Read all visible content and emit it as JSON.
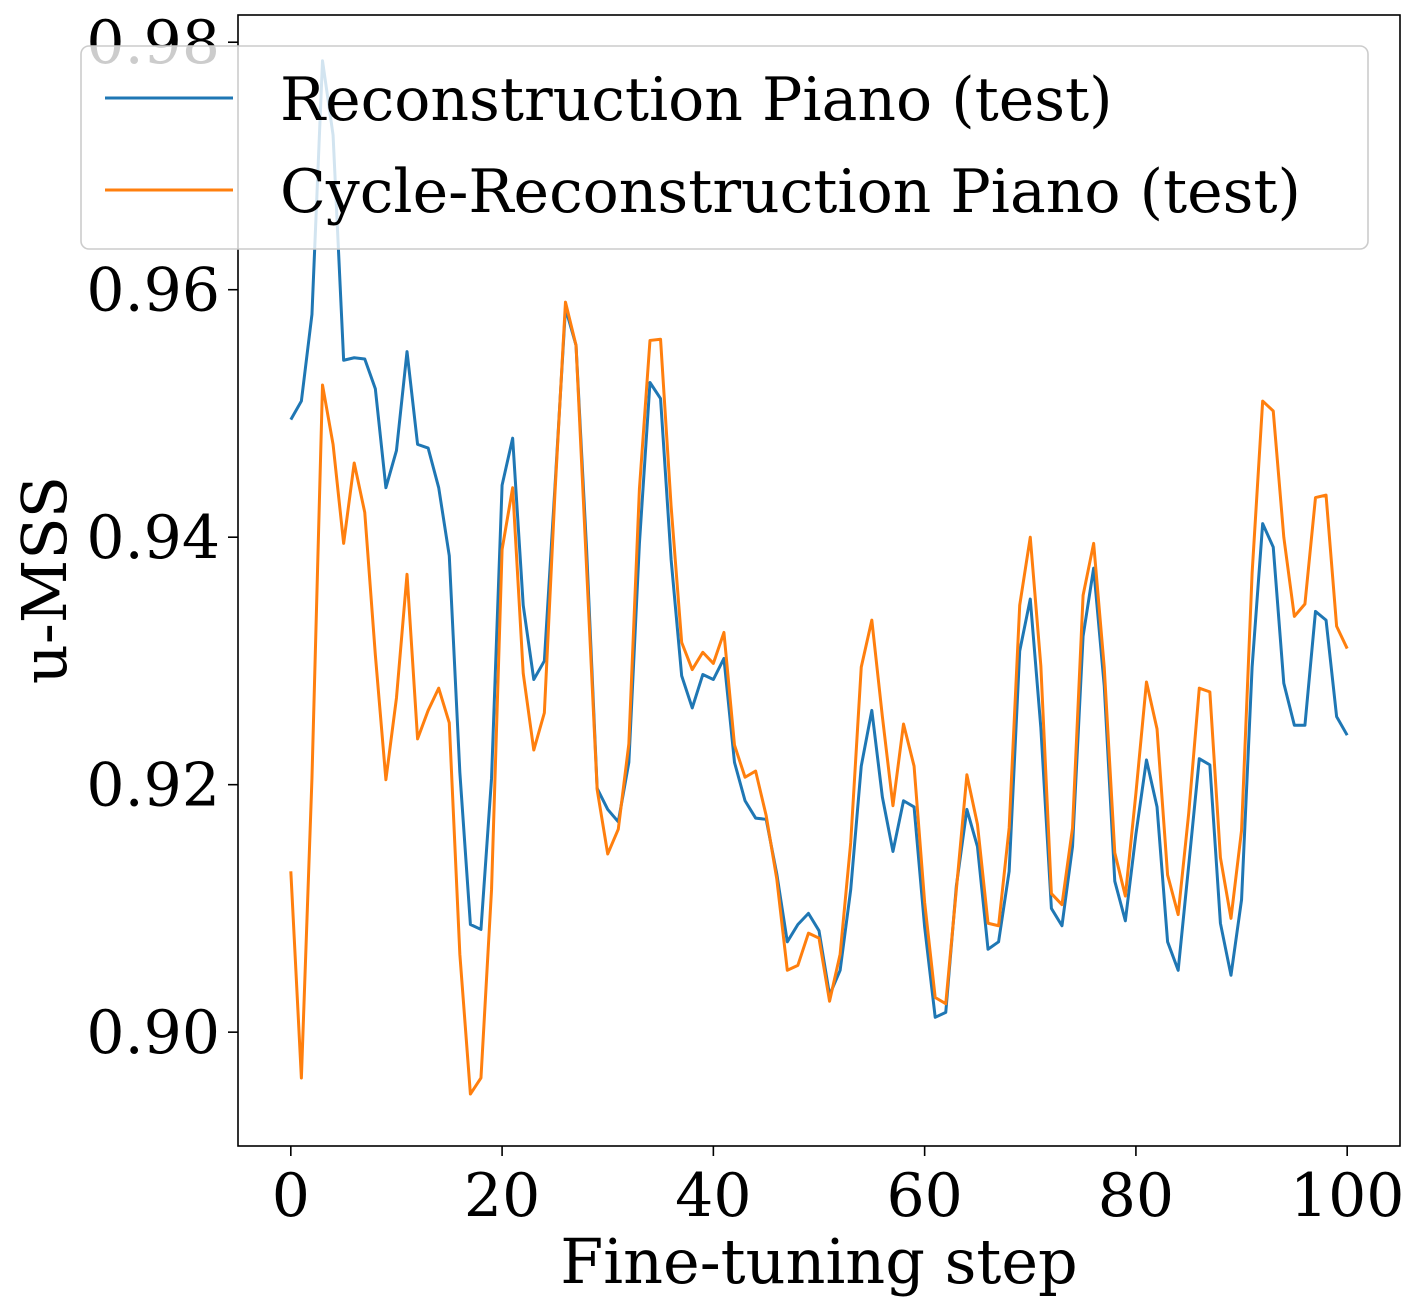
{
  "chart_data": {
    "type": "line",
    "xlabel": "Fine-tuning step",
    "ylabel": "u-MSS",
    "xlim": [
      -5,
      105
    ],
    "ylim": [
      0.8908,
      0.9822
    ],
    "xticks": [
      0,
      20,
      40,
      60,
      80,
      100
    ],
    "xtick_labels": [
      "0",
      "20",
      "40",
      "60",
      "80",
      "100"
    ],
    "yticks": [
      0.9,
      0.92,
      0.94,
      0.96,
      0.98
    ],
    "ytick_labels": [
      "0.90",
      "0.92",
      "0.94",
      "0.96",
      "0.98"
    ],
    "grid": false,
    "legend_position": "top-right",
    "series": [
      {
        "name": "Reconstruction Piano (test)",
        "color": "#1f77b4",
        "values": [
          0.9495,
          0.951,
          0.958,
          0.9785,
          0.9725,
          0.9543,
          0.9545,
          0.9544,
          0.952,
          0.944,
          0.947,
          0.955,
          0.9475,
          0.9472,
          0.944,
          0.9385,
          0.921,
          0.9087,
          0.9083,
          0.9205,
          0.9442,
          0.948,
          0.9345,
          0.9285,
          0.93,
          0.944,
          0.9585,
          0.9555,
          0.939,
          0.9197,
          0.918,
          0.917,
          0.9218,
          0.9395,
          0.9525,
          0.9512,
          0.9382,
          0.9288,
          0.9262,
          0.9289,
          0.9285,
          0.9302,
          0.9218,
          0.9187,
          0.9173,
          0.9172,
          0.9128,
          0.9073,
          0.9087,
          0.9096,
          0.9082,
          0.903,
          0.905,
          0.9115,
          0.9215,
          0.926,
          0.919,
          0.9146,
          0.9187,
          0.9182,
          0.9085,
          0.9012,
          0.9016,
          0.9118,
          0.918,
          0.915,
          0.9067,
          0.9073,
          0.913,
          0.9308,
          0.935,
          0.9246,
          0.91,
          0.9086,
          0.915,
          0.932,
          0.9375,
          0.928,
          0.9122,
          0.909,
          0.916,
          0.922,
          0.9182,
          0.9073,
          0.905,
          0.9135,
          0.9221,
          0.9216,
          0.9088,
          0.9046,
          0.9107,
          0.9295,
          0.9411,
          0.9392,
          0.9282,
          0.9248,
          0.9248,
          0.934,
          0.9333,
          0.9255,
          0.924
        ]
      },
      {
        "name": "Cycle-Reconstruction Piano (test)",
        "color": "#ff7f0e",
        "values": [
          0.913,
          0.8963,
          0.9205,
          0.9523,
          0.9475,
          0.9395,
          0.946,
          0.942,
          0.9305,
          0.9204,
          0.927,
          0.937,
          0.9237,
          0.926,
          0.9278,
          0.925,
          0.9063,
          0.895,
          0.8963,
          0.9115,
          0.939,
          0.944,
          0.929,
          0.9228,
          0.9258,
          0.9435,
          0.959,
          0.9555,
          0.9375,
          0.9196,
          0.9144,
          0.9164,
          0.9233,
          0.9439,
          0.9559,
          0.956,
          0.9425,
          0.9315,
          0.9293,
          0.9307,
          0.9298,
          0.9323,
          0.9232,
          0.9206,
          0.9211,
          0.9175,
          0.9124,
          0.905,
          0.9054,
          0.908,
          0.9076,
          0.9025,
          0.9063,
          0.9153,
          0.9295,
          0.9333,
          0.9255,
          0.9183,
          0.9249,
          0.9215,
          0.9105,
          0.9028,
          0.9023,
          0.9115,
          0.9208,
          0.9168,
          0.9088,
          0.9086,
          0.9165,
          0.9345,
          0.94,
          0.9296,
          0.9112,
          0.9103,
          0.9165,
          0.9353,
          0.9395,
          0.9295,
          0.9145,
          0.911,
          0.9193,
          0.9283,
          0.9245,
          0.9127,
          0.9095,
          0.9177,
          0.9278,
          0.9275,
          0.9141,
          0.9092,
          0.9163,
          0.9371,
          0.951,
          0.9502,
          0.94,
          0.9336,
          0.9346,
          0.9432,
          0.9434,
          0.9328,
          0.931
        ]
      }
    ]
  }
}
